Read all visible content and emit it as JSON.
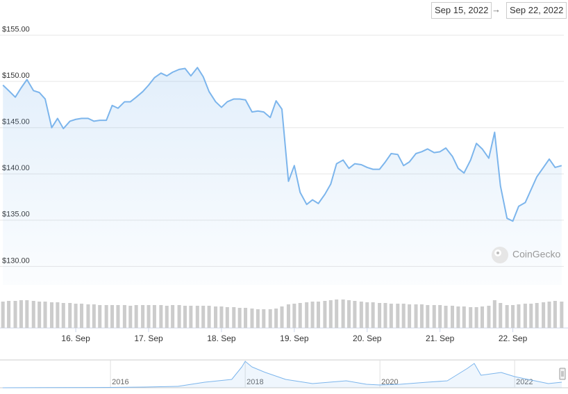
{
  "date_range": {
    "from": "Sep 15, 2022",
    "separator": "→",
    "to": "Sep 22, 2022"
  },
  "chart_data": [
    {
      "type": "line",
      "watermark": "CoinGecko",
      "grid": true,
      "x": [
        15,
        15.08,
        15.17,
        15.25,
        15.33,
        15.42,
        15.5,
        15.58,
        15.67,
        15.75,
        15.83,
        15.92,
        16,
        16.08,
        16.17,
        16.25,
        16.33,
        16.42,
        16.5,
        16.58,
        16.67,
        16.75,
        16.83,
        16.92,
        17,
        17.08,
        17.17,
        17.25,
        17.33,
        17.42,
        17.5,
        17.58,
        17.67,
        17.75,
        17.83,
        17.92,
        18,
        18.08,
        18.17,
        18.25,
        18.33,
        18.42,
        18.5,
        18.58,
        18.67,
        18.75,
        18.83,
        18.92,
        19,
        19.08,
        19.17,
        19.25,
        19.33,
        19.42,
        19.5,
        19.58,
        19.67,
        19.75,
        19.83,
        19.92,
        20,
        20.08,
        20.17,
        20.25,
        20.33,
        20.42,
        20.5,
        20.58,
        20.67,
        20.75,
        20.83,
        20.92,
        21,
        21.08,
        21.17,
        21.25,
        21.33,
        21.42,
        21.5,
        21.58,
        21.67,
        21.75,
        21.83,
        21.92,
        22,
        22.08,
        22.17,
        22.25,
        22.33,
        22.42,
        22.5,
        22.58,
        22.67
      ],
      "xlim": [
        14.96,
        22.7
      ],
      "xticks": [
        {
          "value": 16,
          "label": "16. Sep"
        },
        {
          "value": 17,
          "label": "17. Sep"
        },
        {
          "value": 18,
          "label": "18. Sep"
        },
        {
          "value": 19,
          "label": "19. Sep"
        },
        {
          "value": 20,
          "label": "20. Sep"
        },
        {
          "value": 21,
          "label": "21. Sep"
        },
        {
          "value": 22,
          "label": "22. Sep"
        }
      ],
      "ylim": [
        128,
        157
      ],
      "yticks": [
        {
          "value": 130,
          "label": "$130.00"
        },
        {
          "value": 135,
          "label": "$135.00"
        },
        {
          "value": 140,
          "label": "$140.00"
        },
        {
          "value": 145,
          "label": "$145.00"
        },
        {
          "value": 150,
          "label": "$150.00"
        },
        {
          "value": 155,
          "label": "$155.00"
        }
      ],
      "y2lim": [
        0,
        50
      ],
      "series": [
        {
          "color": "#7cb5ec",
          "values": [
            149.6,
            149.0,
            148.3,
            149.3,
            150.2,
            149.0,
            148.8,
            148.1,
            145.0,
            146.0,
            144.9,
            145.7,
            145.9,
            146.0,
            146.0,
            145.7,
            145.8,
            145.8,
            147.4,
            147.1,
            147.8,
            147.8,
            148.3,
            148.9,
            149.6,
            150.4,
            150.9,
            150.6,
            151.0,
            151.3,
            151.4,
            150.6,
            151.5,
            150.5,
            148.9,
            147.8,
            147.2,
            147.8,
            148.1,
            148.1,
            148.0,
            146.7,
            146.8,
            146.7,
            146.1,
            147.9,
            147.0,
            139.2,
            140.9,
            138.0,
            136.7,
            137.2,
            136.8,
            137.8,
            138.9,
            141.1,
            141.5,
            140.6,
            141.1,
            141.0,
            140.7,
            140.5,
            140.5,
            141.3,
            142.2,
            142.1,
            140.9,
            141.3,
            142.2,
            142.4,
            142.7,
            142.3,
            142.4,
            142.8,
            141.9,
            140.6,
            140.1,
            141.5,
            143.3,
            142.7,
            141.7,
            144.5,
            138.7,
            135.2,
            134.9,
            136.5,
            136.9,
            138.3,
            139.7,
            140.7,
            141.6,
            140.7,
            140.9
          ]
        },
        {
          "type": "bar",
          "axis": "y2",
          "color": "#cccccc",
          "values": [
            38,
            39,
            39,
            40,
            40,
            39,
            38,
            38,
            37,
            37,
            36,
            36,
            35,
            35,
            34,
            34,
            33,
            33,
            33,
            33,
            33,
            32,
            33,
            33,
            33,
            33,
            33,
            32,
            33,
            33,
            32,
            32,
            32,
            32,
            32,
            31,
            31,
            30,
            30,
            29,
            29,
            28,
            27,
            27,
            27,
            28,
            31,
            34,
            35,
            36,
            37,
            38,
            38,
            39,
            40,
            41,
            41,
            40,
            39,
            38,
            37,
            37,
            36,
            36,
            35,
            35,
            35,
            34,
            34,
            34,
            33,
            33,
            33,
            32,
            32,
            31,
            31,
            30,
            30,
            31,
            32,
            40,
            36,
            33,
            33,
            34,
            35,
            35,
            36,
            37,
            38,
            39,
            38
          ]
        }
      ]
    },
    {
      "type": "line",
      "grid": true,
      "x": [
        2014.4,
        2015,
        2016,
        2016.5,
        2017,
        2017.4,
        2017.6,
        2017.8,
        2017.95,
        2018,
        2018.1,
        2018.3,
        2018.6,
        2019,
        2019.5,
        2019.8,
        2020,
        2020.3,
        2020.7,
        2021,
        2021.3,
        2021.4,
        2021.5,
        2021.8,
        2022,
        2022.3,
        2022.5,
        2022.7
      ],
      "xlim": [
        2014.36,
        2022.73
      ],
      "xticks": [
        2016,
        2018,
        2020,
        2022
      ],
      "ylim": [
        0,
        40
      ],
      "series": [
        {
          "color": "#7cb5ec",
          "values": [
            0,
            0.2,
            0.5,
            1,
            2,
            8,
            10,
            12,
            30,
            38,
            30,
            22,
            12,
            6,
            10,
            5,
            4,
            5,
            8,
            10,
            28,
            35,
            18,
            22,
            16,
            10,
            6,
            8
          ]
        }
      ]
    }
  ]
}
